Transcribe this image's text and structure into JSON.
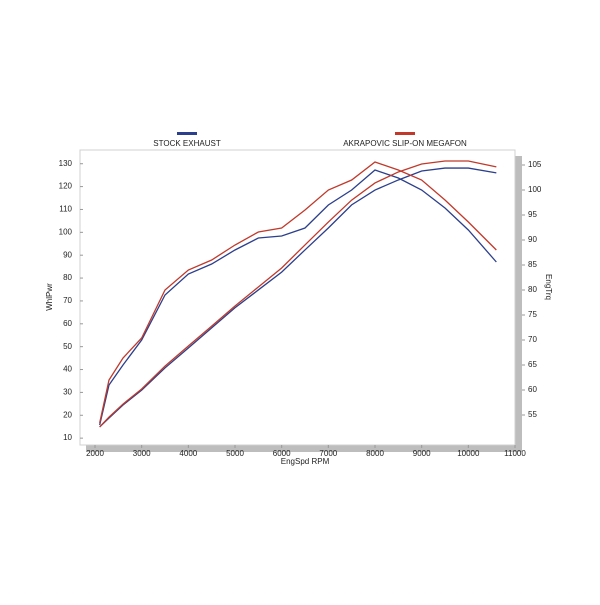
{
  "chart_data": {
    "type": "line",
    "x_label": "EngSpd  RPM",
    "y_label": "WhlPwr",
    "y2_label": "EngTrq",
    "x": [
      2100,
      2300,
      2600,
      3000,
      3500,
      4000,
      4500,
      5000,
      5500,
      6000,
      6500,
      7000,
      7500,
      8000,
      8500,
      9000,
      9500,
      10000,
      10600
    ],
    "series": [
      {
        "name": "STOCK EXHAUST",
        "color": "#2b3f8c",
        "values": [
          14.9,
          18.8,
          24.5,
          31,
          40.7,
          49.4,
          58.2,
          67,
          74.8,
          82.6,
          92.3,
          101.9,
          112,
          118.5,
          122.9,
          126.8,
          128.1,
          128.1,
          126
        ],
        "y2_values": [
          53,
          61,
          65,
          70,
          79,
          83.2,
          85.2,
          88,
          90.4,
          90.8,
          92.4,
          97,
          100,
          104,
          102.4,
          100,
          96.4,
          92,
          85.6
        ]
      },
      {
        "name": "AKRAPOVIC SLIP-ON MEGAFON",
        "color": "#c0392b",
        "values": [
          14.9,
          19.2,
          24.9,
          31.5,
          41.5,
          50.3,
          59,
          67.8,
          76.1,
          84.4,
          94.5,
          104.5,
          114.1,
          121.6,
          126.4,
          129.9,
          131.2,
          131.2,
          128.6
        ],
        "y2_values": [
          53.4,
          62,
          66.4,
          70.4,
          80,
          84,
          86,
          89,
          91.6,
          92.4,
          96,
          100,
          102,
          105.6,
          104,
          102,
          98,
          93.6,
          88
        ]
      }
    ],
    "xlim": [
      2000,
      11000
    ],
    "xticks": [
      2000,
      3000,
      4000,
      5000,
      6000,
      7000,
      8000,
      9000,
      10000,
      11000
    ],
    "ylim": [
      7,
      136
    ],
    "yticks": [
      10,
      20,
      30,
      40,
      50,
      60,
      70,
      80,
      90,
      100,
      110,
      120,
      130
    ],
    "y2lim": [
      49,
      108
    ],
    "y2ticks": [
      55,
      60,
      65,
      70,
      75,
      80,
      85,
      90,
      95,
      100,
      105
    ]
  }
}
